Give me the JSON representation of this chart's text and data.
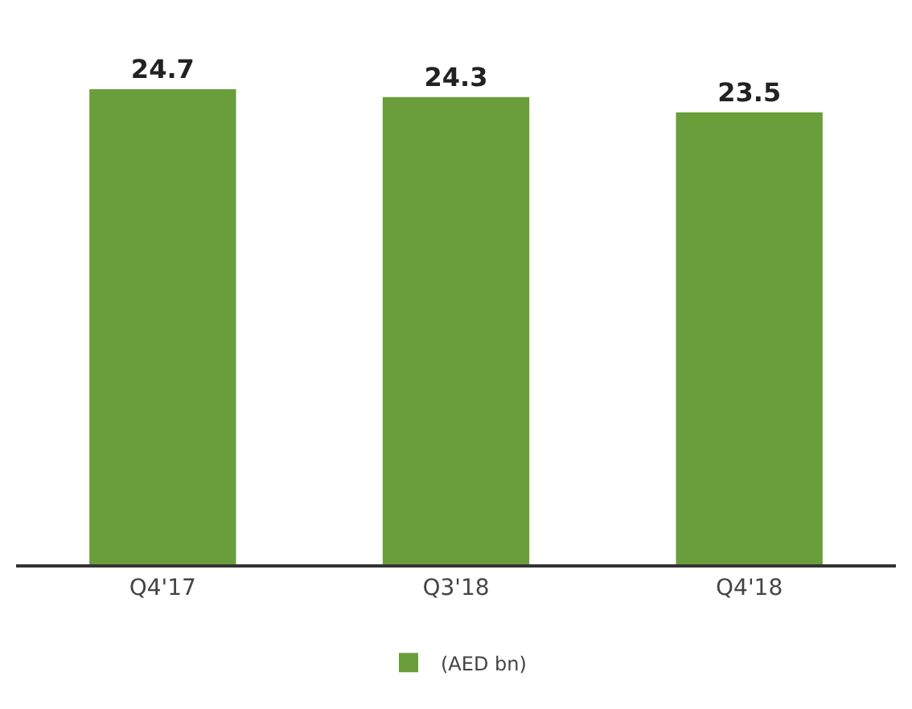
{
  "chart_data": {
    "type": "bar",
    "categories": [
      "Q4'17",
      "Q3'18",
      "Q4'18"
    ],
    "series": [
      {
        "name": "(AED bn)",
        "color": "#6a9e3a",
        "values": [
          24.7,
          24.3,
          23.5
        ]
      }
    ],
    "data_labels": true,
    "legend": "bottom",
    "grid": false
  }
}
